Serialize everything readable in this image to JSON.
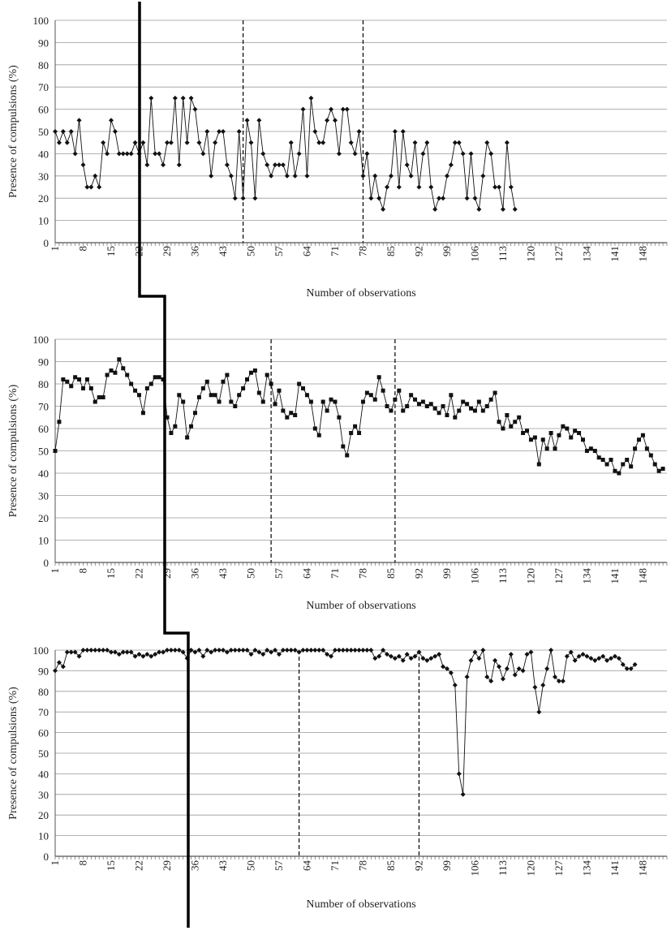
{
  "chart_data": [
    {
      "type": "line",
      "xlabel": "Number of observations",
      "ylabel": "Presence of compulsions (%)",
      "ylim": [
        0,
        100
      ],
      "xlim": [
        1,
        154
      ],
      "yticks": [
        0,
        10,
        20,
        30,
        40,
        50,
        60,
        70,
        80,
        90,
        100
      ],
      "xticks": [
        1,
        8,
        15,
        22,
        29,
        36,
        43,
        50,
        57,
        64,
        71,
        78,
        85,
        92,
        99,
        106,
        113,
        120,
        127,
        134,
        141,
        148
      ],
      "grid": true,
      "phase_lines": [
        48,
        78
      ],
      "marker": "diamond",
      "values": [
        50,
        45,
        50,
        45,
        50,
        40,
        55,
        35,
        25,
        25,
        30,
        25,
        45,
        40,
        55,
        50,
        40,
        40,
        40,
        40,
        45,
        40,
        45,
        35,
        65,
        40,
        40,
        35,
        45,
        45,
        65,
        35,
        65,
        45,
        65,
        60,
        45,
        40,
        50,
        30,
        45,
        50,
        50,
        35,
        30,
        20,
        50,
        20,
        55,
        45,
        20,
        55,
        40,
        35,
        30,
        35,
        35,
        35,
        30,
        45,
        30,
        40,
        60,
        30,
        65,
        50,
        45,
        45,
        55,
        60,
        55,
        40,
        60,
        60,
        45,
        40,
        50,
        30,
        40,
        20,
        30,
        20,
        15,
        25,
        30,
        50,
        25,
        50,
        35,
        30,
        45,
        25,
        40,
        45,
        25,
        15,
        20,
        20,
        30,
        35,
        45,
        45,
        40,
        20,
        40,
        20,
        15,
        30,
        45,
        40,
        25,
        25,
        15,
        45,
        25,
        15
      ]
    },
    {
      "type": "line",
      "xlabel": "Number of observations",
      "ylabel": "Presence of compulsions (%)",
      "ylim": [
        0,
        100
      ],
      "xlim": [
        1,
        154
      ],
      "yticks": [
        0,
        10,
        20,
        30,
        40,
        50,
        60,
        70,
        80,
        90,
        100
      ],
      "xticks": [
        1,
        8,
        15,
        22,
        29,
        36,
        43,
        50,
        57,
        64,
        71,
        78,
        85,
        92,
        99,
        106,
        113,
        120,
        127,
        134,
        141,
        148
      ],
      "grid": true,
      "phase_lines": [
        55,
        86
      ],
      "marker": "square",
      "values": [
        50,
        63,
        82,
        81,
        79,
        83,
        82,
        78,
        82,
        78,
        72,
        74,
        74,
        84,
        86,
        85,
        91,
        87,
        84,
        80,
        77,
        75,
        67,
        78,
        80,
        83,
        83,
        82,
        65,
        58,
        61,
        75,
        72,
        56,
        61,
        67,
        74,
        78,
        81,
        75,
        75,
        72,
        81,
        84,
        72,
        70,
        75,
        78,
        82,
        85,
        86,
        76,
        72,
        84,
        80,
        71,
        77,
        68,
        65,
        67,
        66,
        80,
        78,
        75,
        72,
        60,
        57,
        72,
        68,
        73,
        72,
        65,
        52,
        48,
        58,
        61,
        58,
        72,
        76,
        75,
        73,
        83,
        77,
        70,
        68,
        73,
        77,
        68,
        70,
        75,
        73,
        71,
        72,
        70,
        71,
        69,
        67,
        70,
        66,
        75,
        65,
        68,
        72,
        71,
        69,
        68,
        72,
        68,
        70,
        73,
        76,
        63,
        60,
        66,
        61,
        63,
        65,
        58,
        59,
        55,
        56,
        44,
        55,
        51,
        58,
        51,
        57,
        61,
        60,
        56,
        59,
        58,
        55,
        50,
        51,
        50,
        47,
        46,
        44,
        46,
        41,
        40,
        44,
        46,
        43,
        51,
        55,
        57,
        51,
        48,
        44,
        41,
        42
      ]
    },
    {
      "type": "line",
      "xlabel": "Number of observations",
      "ylabel": "Presence of compulsions (%)",
      "ylim": [
        0,
        100
      ],
      "xlim": [
        1,
        154
      ],
      "yticks": [
        0,
        10,
        20,
        30,
        40,
        50,
        60,
        70,
        80,
        90,
        100
      ],
      "xticks": [
        1,
        8,
        15,
        22,
        29,
        36,
        43,
        50,
        57,
        64,
        71,
        78,
        85,
        92,
        99,
        106,
        113,
        120,
        127,
        134,
        141,
        148
      ],
      "grid": true,
      "phase_lines": [
        62,
        92
      ],
      "marker": "diamond",
      "values": [
        90,
        94,
        92,
        99,
        99,
        99,
        97,
        100,
        100,
        100,
        100,
        100,
        100,
        100,
        99,
        99,
        98,
        99,
        99,
        99,
        97,
        98,
        97,
        98,
        97,
        98,
        99,
        99,
        100,
        100,
        100,
        100,
        99,
        96,
        100,
        99,
        100,
        97,
        100,
        99,
        100,
        100,
        100,
        99,
        100,
        100,
        100,
        100,
        100,
        98,
        100,
        99,
        98,
        100,
        99,
        100,
        98,
        100,
        100,
        100,
        100,
        99,
        100,
        100,
        100,
        100,
        100,
        100,
        98,
        97,
        100,
        100,
        100,
        100,
        100,
        100,
        100,
        100,
        100,
        100,
        96,
        97,
        100,
        98,
        97,
        96,
        97,
        95,
        98,
        96,
        97,
        99,
        96,
        95,
        96,
        97,
        98,
        92,
        91,
        89,
        83,
        40,
        30,
        87,
        95,
        99,
        96,
        100,
        87,
        85,
        95,
        92,
        86,
        91,
        98,
        88,
        91,
        90,
        98,
        99,
        82,
        70,
        83,
        91,
        100,
        87,
        85,
        85,
        97,
        99,
        95,
        97,
        98,
        97,
        96,
        95,
        96,
        97,
        95,
        96,
        97,
        96,
        93,
        91,
        91,
        93
      ]
    }
  ]
}
